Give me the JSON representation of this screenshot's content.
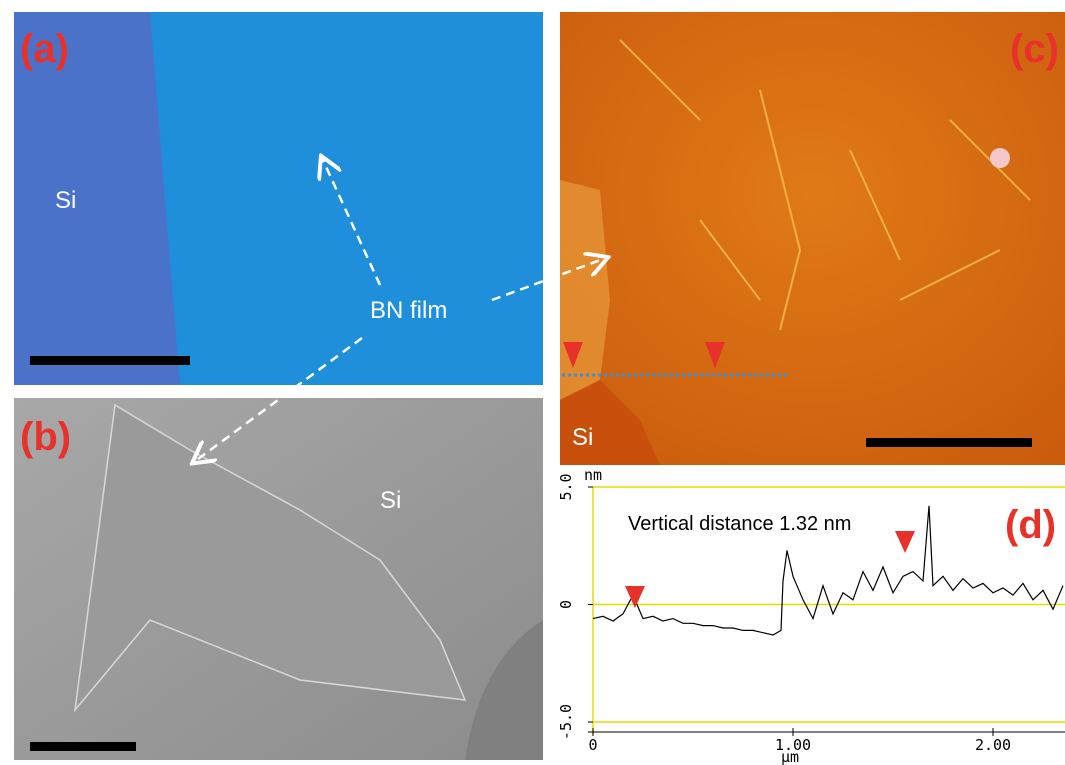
{
  "panel_a": {
    "label": "(a)",
    "region": "Si"
  },
  "panel_b": {
    "label": "(b)",
    "region": "Si"
  },
  "panel_c": {
    "label": "(c)",
    "region": "Si"
  },
  "annotation": "BN film",
  "chart_data": {
    "type": "line",
    "label": "(d)",
    "annotation": "Vertical distance 1.32 nm",
    "y_label": "nm",
    "x_label": "µm",
    "x": [
      0,
      0.05,
      0.1,
      0.15,
      0.2,
      0.25,
      0.3,
      0.35,
      0.4,
      0.45,
      0.5,
      0.55,
      0.6,
      0.65,
      0.7,
      0.75,
      0.8,
      0.85,
      0.9,
      0.94,
      0.95,
      0.97,
      1.0,
      1.05,
      1.1,
      1.15,
      1.2,
      1.25,
      1.3,
      1.35,
      1.4,
      1.45,
      1.5,
      1.55,
      1.6,
      1.65,
      1.68,
      1.7,
      1.75,
      1.8,
      1.85,
      1.9,
      1.95,
      2.0,
      2.05,
      2.1,
      2.15,
      2.2,
      2.25,
      2.3,
      2.35
    ],
    "series": [
      {
        "color": "#000000",
        "values": [
          -0.6,
          -0.5,
          -0.7,
          -0.4,
          0.4,
          -0.6,
          -0.5,
          -0.7,
          -0.6,
          -0.8,
          -0.8,
          -0.9,
          -0.9,
          -1.0,
          -1.0,
          -1.1,
          -1.1,
          -1.2,
          -1.3,
          -1.1,
          1.0,
          2.3,
          1.2,
          0.2,
          -0.6,
          0.8,
          -0.4,
          0.5,
          0.2,
          1.4,
          0.6,
          1.6,
          0.5,
          1.2,
          1.4,
          1.0,
          4.2,
          0.8,
          1.2,
          0.6,
          1.1,
          0.7,
          0.9,
          0.5,
          0.7,
          0.4,
          0.9,
          0.2,
          0.6,
          -0.2,
          0.8
        ]
      }
    ],
    "marker_x": [
      0.21,
      1.56
    ],
    "marker_color": "#e8312a",
    "xlim": [
      0,
      2.36
    ],
    "ylim": [
      -5,
      5
    ],
    "xticks": [
      0,
      {
        "value": 1,
        "label": "1.00"
      },
      {
        "value": 2,
        "label": "2.00"
      }
    ],
    "yticks": [
      {
        "value": -5,
        "label": "-5.0"
      },
      0,
      {
        "value": 5,
        "label": "5.0"
      }
    ],
    "grid": true,
    "grid_color": "#e6dc00"
  }
}
